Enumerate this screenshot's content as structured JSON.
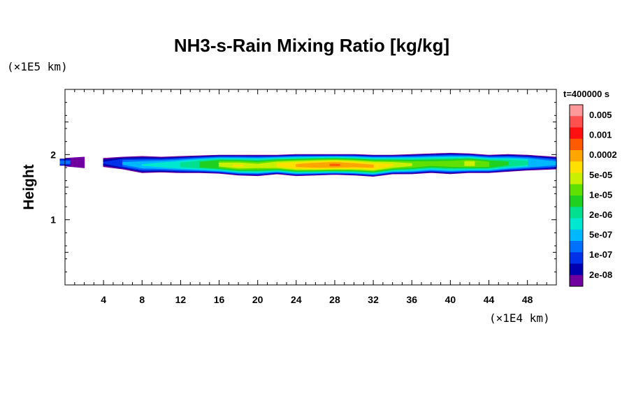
{
  "chart_data": {
    "type": "heatmap",
    "title": "NH3-s-Rain Mixing Ratio [kg/kg]",
    "ylabel": "Height",
    "xlabel": "",
    "x_unit": "(×1E4 km)",
    "y_unit": "(×1E5 km)",
    "time_label": "t=400000 s",
    "xlim": [
      0,
      51
    ],
    "ylim": [
      0,
      3
    ],
    "x_ticks": [
      4,
      8,
      12,
      16,
      20,
      24,
      28,
      32,
      36,
      40,
      44,
      48
    ],
    "y_ticks": [
      1,
      2
    ],
    "colorbar": {
      "labels": [
        "0.005",
        "0.001",
        "0.0002",
        "5e-05",
        "1e-05",
        "2e-06",
        "5e-07",
        "1e-07",
        "2e-08"
      ],
      "colors_top_to_bottom": [
        "#ff9999",
        "#ff5050",
        "#ff1010",
        "#ff5a00",
        "#ffa500",
        "#ffe000",
        "#c8f000",
        "#60e000",
        "#20d020",
        "#00e090",
        "#00e8d0",
        "#00b8ff",
        "#0070ff",
        "#0030e8",
        "#0000b0",
        "#7000a0"
      ]
    },
    "band": {
      "x": [
        0,
        2,
        3,
        4,
        6,
        8,
        10,
        12,
        14,
        16,
        18,
        20,
        22,
        24,
        26,
        28,
        30,
        32,
        34,
        36,
        38,
        40,
        42,
        44,
        46,
        48,
        51
      ],
      "top": [
        1.95,
        1.97,
        1.96,
        1.95,
        1.97,
        1.98,
        1.97,
        1.98,
        1.99,
        2.0,
        2.0,
        2.0,
        2.0,
        2.01,
        2.01,
        2.01,
        2.01,
        2.0,
        2.0,
        2.01,
        2.02,
        2.03,
        2.02,
        2.0,
        2.01,
        2.0,
        1.97
      ],
      "bottom": [
        1.83,
        1.8,
        1.84,
        1.82,
        1.78,
        1.72,
        1.73,
        1.72,
        1.72,
        1.71,
        1.68,
        1.67,
        1.7,
        1.67,
        1.68,
        1.69,
        1.68,
        1.66,
        1.7,
        1.7,
        1.72,
        1.7,
        1.72,
        1.72,
        1.74,
        1.76,
        1.78
      ],
      "peak_log10_kgkg": [
        -6.5,
        -7.5,
        -9,
        -7,
        -6.3,
        -6,
        -5.8,
        -5.5,
        -5,
        -4.5,
        -4.3,
        -4.5,
        -4.2,
        -3.9,
        -3.7,
        -3.6,
        -3.8,
        -3.9,
        -4.3,
        -4.6,
        -4.8,
        -4.7,
        -4.4,
        -4.7,
        -5.2,
        -5.5,
        -6.2
      ]
    }
  }
}
